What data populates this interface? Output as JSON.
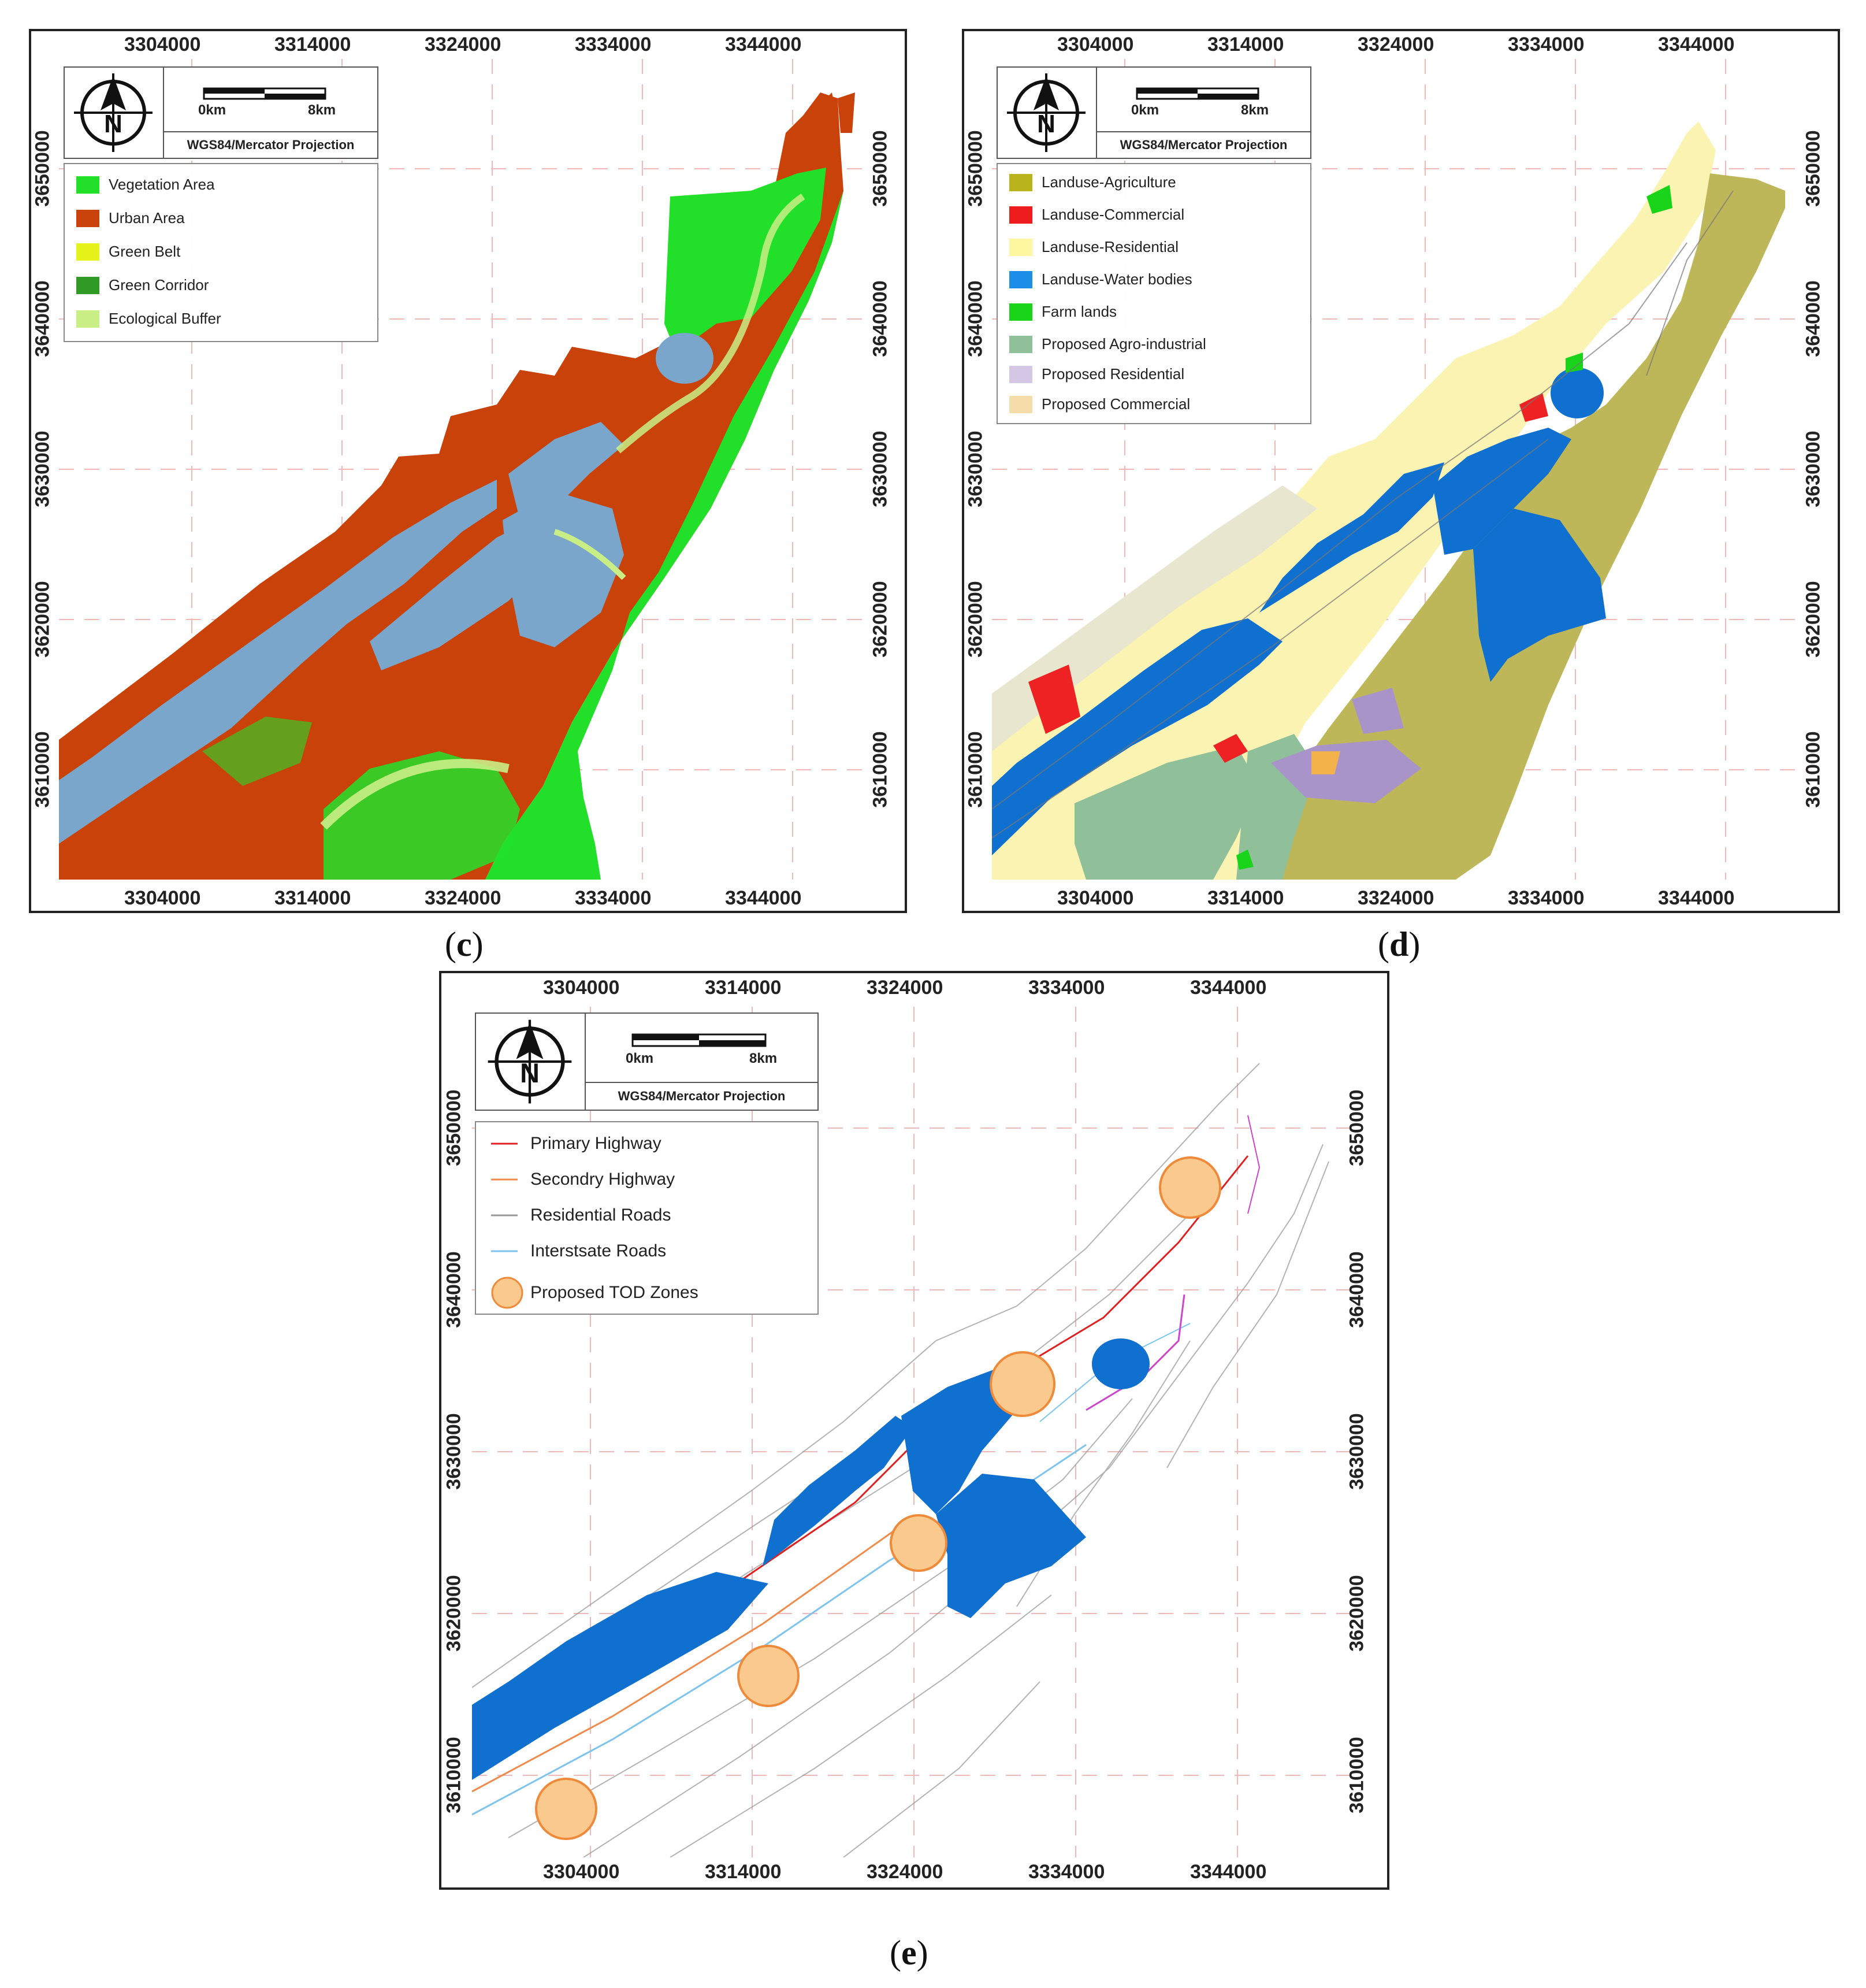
{
  "panels": {
    "c": {
      "caption_open": "(",
      "caption_letter": "c",
      "caption_close": ")",
      "legend": [
        {
          "label": "Vegetation Area",
          "color": "#22e02a"
        },
        {
          "label": "Urban Area",
          "color": "#c8420a"
        },
        {
          "label": "Green Belt",
          "color": "#e6f21a"
        },
        {
          "label": "Green Corridor",
          "color": "#2f9a24"
        },
        {
          "label": "Ecological Buffer",
          "color": "#c9ee86"
        }
      ]
    },
    "d": {
      "caption_open": "(",
      "caption_letter": "d",
      "caption_close": ")",
      "legend": [
        {
          "label": "Landuse-Agriculture",
          "color": "#b9b31c"
        },
        {
          "label": "Landuse-Commercial",
          "color": "#ee1c1c"
        },
        {
          "label": "Landuse-Residential",
          "color": "#fdf7a0"
        },
        {
          "label": "Landuse-Water bodies",
          "color": "#1c8ee8"
        },
        {
          "label": "Farm lands",
          "color": "#1ad41a"
        },
        {
          "label": "Proposed Agro-industrial",
          "color": "#8fc09a"
        },
        {
          "label": "Proposed Residential",
          "color": "#d5c8e6"
        },
        {
          "label": "Proposed Commercial",
          "color": "#f6dca8"
        }
      ]
    },
    "e": {
      "caption_open": "(",
      "caption_letter": "e",
      "caption_close": ")",
      "legend": [
        {
          "label": "Primary Highway",
          "color": "#e02020",
          "kind": "line"
        },
        {
          "label": "Secondry Highway",
          "color": "#f08a4a",
          "kind": "line"
        },
        {
          "label": "Residential Roads",
          "color": "#999999",
          "kind": "line"
        },
        {
          "label": "Interstsate Roads",
          "color": "#7cc4ee",
          "kind": "line"
        },
        {
          "label": "Proposed TOD Zones",
          "color": "#f9c98e",
          "kind": "circle"
        }
      ]
    }
  },
  "common": {
    "compass_letter": "N",
    "scale_start": "0km",
    "scale_end": "8km",
    "projection": "WGS84/Mercator Projection",
    "x_ticks": [
      "3304000",
      "3314000",
      "3324000",
      "3334000",
      "3344000"
    ],
    "y_ticks": [
      "3650000",
      "3640000",
      "3630000",
      "3620000",
      "3610000"
    ]
  },
  "colors": {
    "urban": "#c8420a",
    "vegetation": "#22e02a",
    "water_c": "#7aa6cc",
    "water": "#0f70d0",
    "agriculture": "#bdb75a",
    "residential": "#fbf3b2",
    "commercial": "#ee2222",
    "agro": "#8fc09a",
    "prop_res": "#a894c8",
    "prop_com": "#f3b24a",
    "tod": "#f9c98e",
    "tod_edge": "#ee8a3a",
    "grid": "#f2b8b8"
  }
}
